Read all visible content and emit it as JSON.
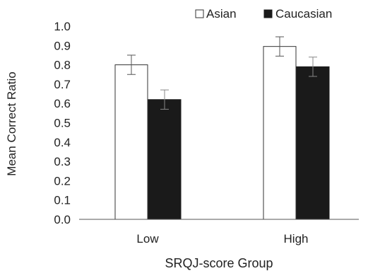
{
  "chart_data": {
    "type": "bar",
    "title": "",
    "xlabel": "SRQJ-score Group",
    "ylabel": "Mean Correct Ratio",
    "categories": [
      "Low",
      "High"
    ],
    "ylim": [
      0,
      1
    ],
    "yticks": [
      "0.0",
      "0.1",
      "0.2",
      "0.3",
      "0.4",
      "0.5",
      "0.6",
      "0.7",
      "0.8",
      "0.9",
      "1.0"
    ],
    "grid": false,
    "legend_position": "top-right",
    "series": [
      {
        "name": "Asian",
        "values": [
          0.8,
          0.895
        ],
        "errors": [
          0.05,
          0.05
        ],
        "color": "#ffffff"
      },
      {
        "name": "Caucasian",
        "values": [
          0.62,
          0.79
        ],
        "errors": [
          0.05,
          0.05
        ],
        "color": "#1a1a1a"
      }
    ]
  }
}
